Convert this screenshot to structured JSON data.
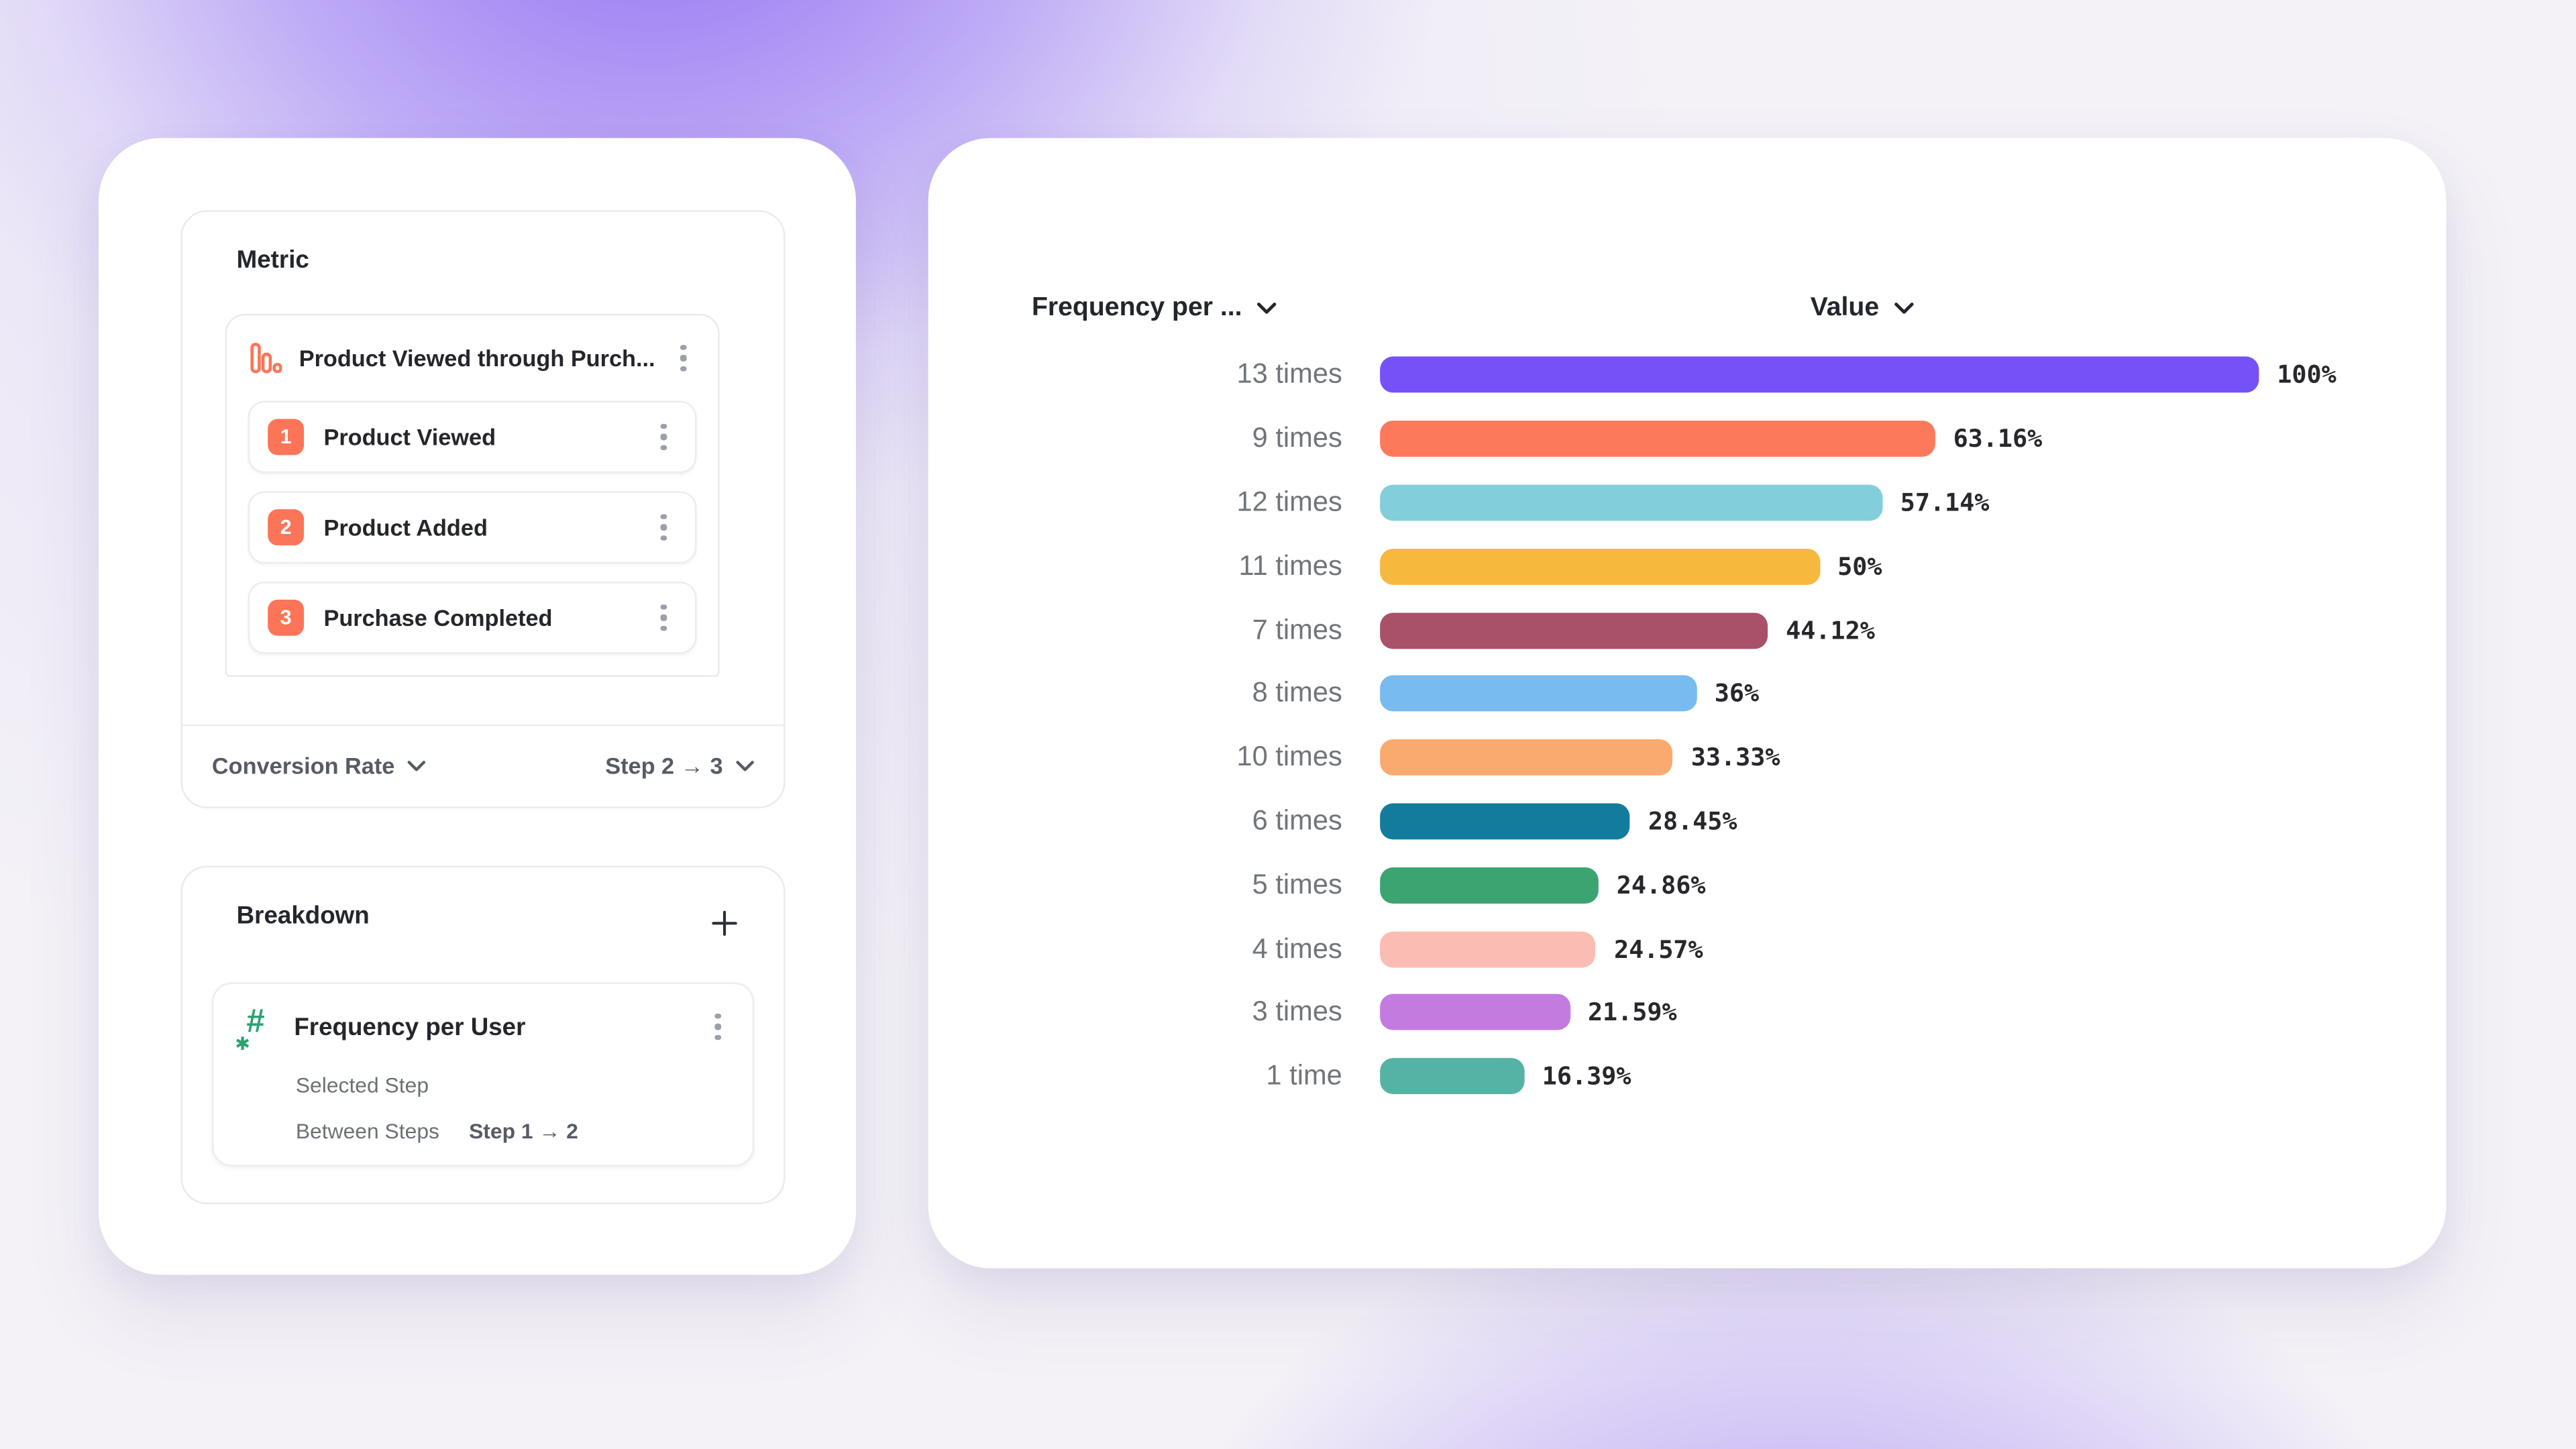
{
  "theme": {
    "accent_orange": "#FC7558",
    "accent_green": "#2EA26F",
    "background_accent": "#8E6CF2"
  },
  "left_panel": {
    "metric_section": {
      "title": "Metric",
      "funnel": {
        "header": {
          "label": "Product Viewed through Purch...",
          "icon": "funnel-bars-icon"
        },
        "steps": [
          {
            "number": "1",
            "label": "Product Viewed"
          },
          {
            "number": "2",
            "label": "Product Added"
          },
          {
            "number": "3",
            "label": "Purchase Completed"
          }
        ]
      },
      "footer": {
        "measure_label": "Conversion Rate",
        "step_range_label": "Step 2 → 3"
      }
    },
    "breakdown_section": {
      "title": "Breakdown",
      "item": {
        "name": "Frequency per User",
        "selected_step_label": "Selected Step",
        "between_steps_label": "Between Steps",
        "between_steps_value": "Step 1 → 2"
      }
    }
  },
  "chart": {
    "category_header": "Frequency per ...",
    "value_header": "Value"
  },
  "chart_data": {
    "type": "bar",
    "orientation": "horizontal",
    "title": "",
    "xlabel": "",
    "ylabel": "",
    "xlim": [
      0,
      100
    ],
    "grid": false,
    "legend": "none",
    "column_headers": {
      "category": "Frequency per ...",
      "value": "Value"
    },
    "categories": [
      "13 times",
      "9 times",
      "12 times",
      "11 times",
      "7 times",
      "8 times",
      "10 times",
      "6 times",
      "5 times",
      "4 times",
      "3 times",
      "1 time"
    ],
    "values": [
      100,
      63.16,
      57.14,
      50,
      44.12,
      36,
      33.33,
      28.45,
      24.86,
      24.57,
      21.59,
      16.39
    ],
    "value_labels": [
      "100%",
      "63.16%",
      "57.14%",
      "50%",
      "44.12%",
      "36%",
      "33.33%",
      "28.45%",
      "24.86%",
      "24.57%",
      "21.59%",
      "16.39%"
    ],
    "colors": [
      "#7452F8",
      "#FC7A5B",
      "#82CEDA",
      "#F7B83E",
      "#A95169",
      "#77BBF0",
      "#FAAA6E",
      "#137C9D",
      "#3CA471",
      "#FBBDB3",
      "#C47BE0",
      "#55B3A5"
    ]
  }
}
